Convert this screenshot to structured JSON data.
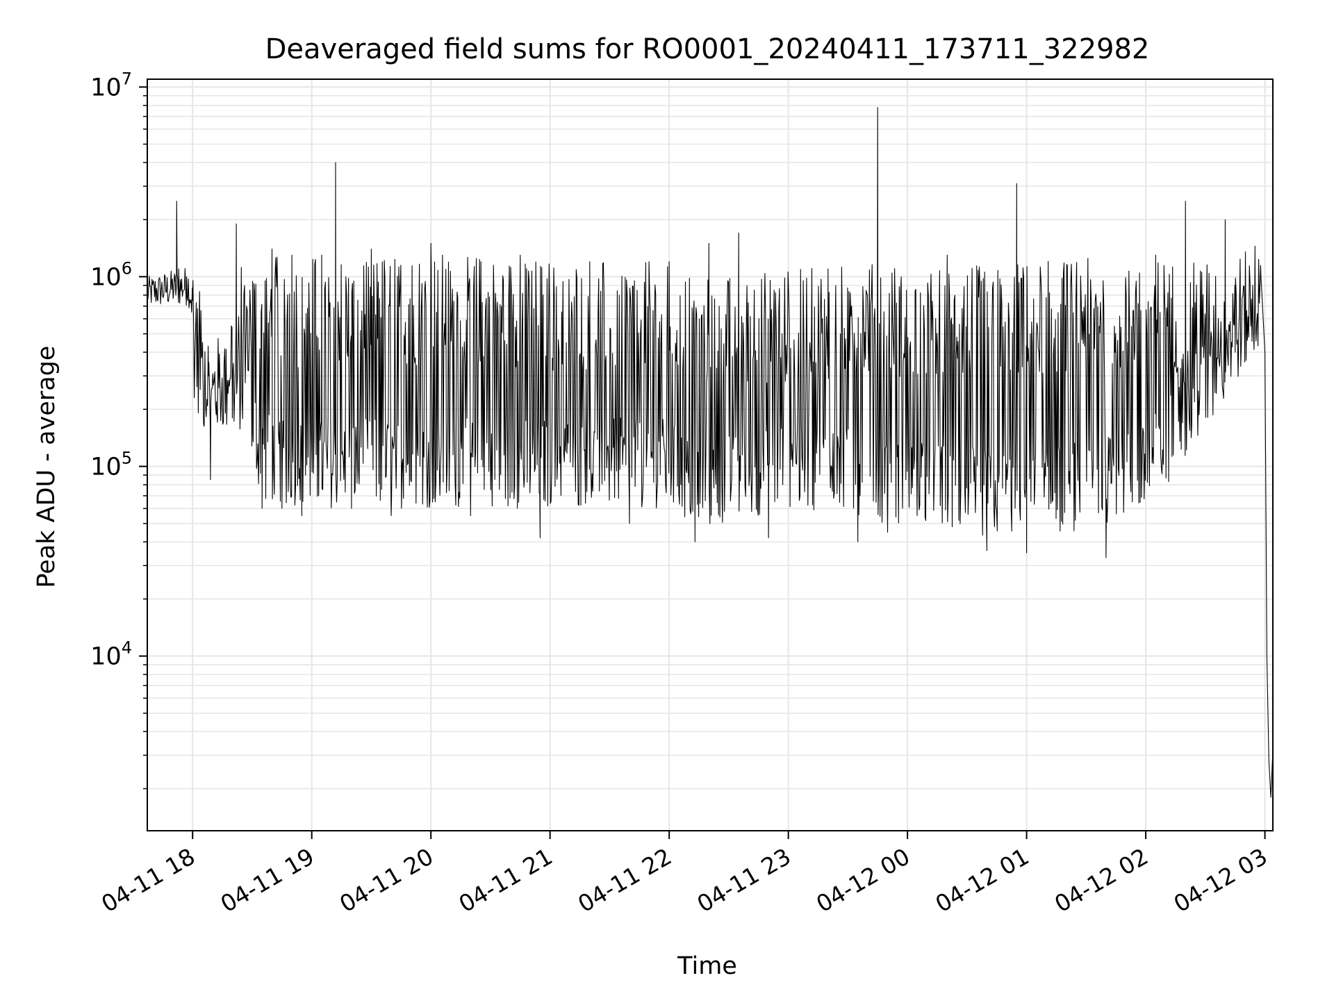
{
  "chart_data": {
    "type": "line",
    "title": "Deaveraged field sums for RO0001_20240411_173711_322982",
    "xlabel": "Time",
    "ylabel": "Peak ADU - average",
    "yscale": "log",
    "ylim": [
      1200,
      11000000
    ],
    "xlim": [
      "2024-04-11 17:37:11",
      "2024-04-12 03:04:00"
    ],
    "grid": true,
    "line_color": "#000000",
    "grid_color": "#e6e6e6",
    "x_ticks": [
      {
        "t": "2024-04-11 18:00",
        "label": "04-11 18"
      },
      {
        "t": "2024-04-11 19:00",
        "label": "04-11 19"
      },
      {
        "t": "2024-04-11 20:00",
        "label": "04-11 20"
      },
      {
        "t": "2024-04-11 21:00",
        "label": "04-11 21"
      },
      {
        "t": "2024-04-11 22:00",
        "label": "04-11 22"
      },
      {
        "t": "2024-04-11 23:00",
        "label": "04-11 23"
      },
      {
        "t": "2024-04-12 00:00",
        "label": "04-12 00"
      },
      {
        "t": "2024-04-12 01:00",
        "label": "04-12 01"
      },
      {
        "t": "2024-04-12 02:00",
        "label": "04-12 02"
      },
      {
        "t": "2024-04-12 03:00",
        "label": "04-12 03"
      }
    ],
    "y_ticks": [
      {
        "value": 10000,
        "base": "10",
        "exp": "4"
      },
      {
        "value": 100000,
        "base": "10",
        "exp": "5"
      },
      {
        "value": 1000000,
        "base": "10",
        "exp": "6"
      },
      {
        "value": 10000000,
        "base": "10",
        "exp": "7"
      }
    ],
    "series": [
      {
        "points": [
          [
            "2024-04-11 17:37",
            750000
          ],
          [
            "2024-04-11 17:42",
            850000
          ],
          [
            "2024-04-11 17:47",
            900000
          ],
          [
            "2024-04-11 17:51",
            950000
          ],
          [
            "2024-04-11 17:52",
            2500000
          ],
          [
            "2024-04-11 17:53",
            1100000
          ],
          [
            "2024-04-11 17:57",
            1000000
          ],
          [
            "2024-04-11 18:00",
            750000
          ],
          [
            "2024-04-11 18:05",
            450000
          ],
          [
            "2024-04-11 18:08",
            300000
          ],
          [
            "2024-04-11 18:09",
            85000
          ],
          [
            "2024-04-11 18:12",
            220000
          ],
          [
            "2024-04-11 18:20",
            180000
          ],
          [
            "2024-04-11 18:22",
            1900000
          ],
          [
            "2024-04-11 18:30",
            150000
          ],
          [
            "2024-04-11 18:35",
            60000
          ],
          [
            "2024-04-11 18:40",
            1400000
          ],
          [
            "2024-04-11 18:45",
            60000
          ],
          [
            "2024-04-11 18:50",
            1300000
          ],
          [
            "2024-04-11 18:55",
            55000
          ],
          [
            "2024-04-11 19:05",
            1300000
          ],
          [
            "2024-04-11 19:12",
            4000000
          ],
          [
            "2024-04-11 19:20",
            60000
          ],
          [
            "2024-04-11 19:30",
            1400000
          ],
          [
            "2024-04-11 19:40",
            55000
          ],
          [
            "2024-04-11 20:00",
            1500000
          ],
          [
            "2024-04-11 20:20",
            55000
          ],
          [
            "2024-04-11 20:45",
            1300000
          ],
          [
            "2024-04-11 20:55",
            42000
          ],
          [
            "2024-04-11 21:20",
            1200000
          ],
          [
            "2024-04-11 21:40",
            50000
          ],
          [
            "2024-04-11 22:00",
            1200000
          ],
          [
            "2024-04-11 22:13",
            40000
          ],
          [
            "2024-04-11 22:20",
            1500000
          ],
          [
            "2024-04-11 22:35",
            1700000
          ],
          [
            "2024-04-11 22:50",
            42000
          ],
          [
            "2024-04-11 23:20",
            1100000
          ],
          [
            "2024-04-11 23:35",
            40000
          ],
          [
            "2024-04-11 23:45",
            7800000
          ],
          [
            "2024-04-11 23:50",
            45000
          ],
          [
            "2024-04-12 00:20",
            1300000
          ],
          [
            "2024-04-12 00:40",
            36000
          ],
          [
            "2024-04-12 00:55",
            3100000
          ],
          [
            "2024-04-12 01:00",
            35000
          ],
          [
            "2024-04-12 01:40",
            33000
          ],
          [
            "2024-04-12 02:05",
            1300000
          ],
          [
            "2024-04-12 02:20",
            2500000
          ],
          [
            "2024-04-12 02:30",
            600000
          ],
          [
            "2024-04-12 02:40",
            2000000
          ],
          [
            "2024-04-12 02:45",
            400000
          ],
          [
            "2024-04-12 02:55",
            1450000
          ],
          [
            "2024-04-12 02:58",
            1000000
          ],
          [
            "2024-04-12 03:00",
            400000
          ],
          [
            "2024-04-12 03:01",
            10000
          ],
          [
            "2024-04-12 03:02",
            2800
          ],
          [
            "2024-04-12 03:03",
            1800
          ],
          [
            "2024-04-12 03:04",
            3200
          ]
        ]
      }
    ]
  }
}
